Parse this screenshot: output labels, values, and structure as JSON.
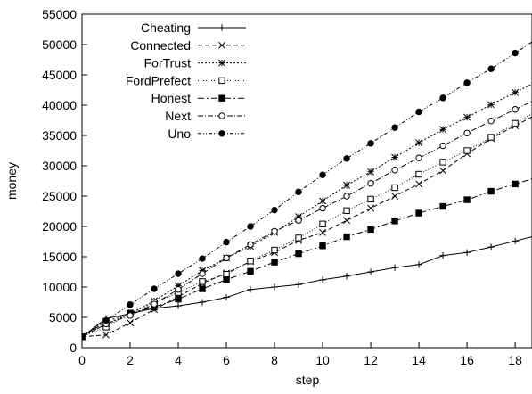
{
  "chart_data": {
    "type": "line",
    "title": "",
    "xlabel": "step",
    "ylabel": "money",
    "xlim": [
      0,
      18.7
    ],
    "ylim": [
      0,
      55000
    ],
    "x_ticks": [
      0,
      2,
      4,
      6,
      8,
      10,
      12,
      14,
      16,
      18
    ],
    "y_ticks": [
      0,
      5000,
      10000,
      15000,
      20000,
      25000,
      30000,
      35000,
      40000,
      45000,
      50000,
      55000
    ],
    "grid": false,
    "legend_position": "top-left",
    "x": [
      0,
      1,
      2,
      3,
      4,
      5,
      6,
      7,
      8,
      9,
      10,
      11,
      12,
      13,
      14,
      15,
      16,
      17,
      18
    ],
    "series": [
      {
        "name": "Cheating",
        "marker": "plus",
        "dash": "",
        "values": [
          1800,
          4800,
          5600,
          6500,
          6900,
          7500,
          8300,
          9600,
          10000,
          10400,
          11200,
          11800,
          12500,
          13200,
          13700,
          15200,
          15700,
          16600,
          17600
        ]
      },
      {
        "name": "Connected",
        "marker": "cross",
        "dash": "5,3",
        "values": [
          1800,
          2100,
          4100,
          6300,
          8400,
          10600,
          12300,
          14200,
          15700,
          17700,
          19000,
          21000,
          23000,
          25000,
          27000,
          29200,
          32000,
          34500,
          36600
        ]
      },
      {
        "name": "ForTrust",
        "marker": "star",
        "dash": "2,2",
        "values": [
          1800,
          3900,
          5600,
          7700,
          10200,
          12700,
          14800,
          16700,
          19000,
          21600,
          24200,
          26800,
          29000,
          31400,
          33800,
          36000,
          38000,
          40100,
          42100
        ]
      },
      {
        "name": "FordPrefect",
        "marker": "square-open",
        "dash": "1,2",
        "values": [
          1800,
          3400,
          5700,
          7400,
          9100,
          10900,
          12100,
          14300,
          16100,
          18100,
          20400,
          22600,
          24500,
          26400,
          28600,
          30600,
          32500,
          34700,
          37000
        ]
      },
      {
        "name": "Honest",
        "marker": "square-filled",
        "dash": "7,3,2,3",
        "values": [
          1800,
          4300,
          5700,
          6700,
          8000,
          9700,
          11200,
          12600,
          14100,
          15500,
          16800,
          18300,
          19500,
          20900,
          22200,
          23300,
          24400,
          25800,
          27000
        ]
      },
      {
        "name": "Next",
        "marker": "circle-open",
        "dash": "6,2,1,2",
        "values": [
          1800,
          3900,
          5300,
          7200,
          9600,
          12200,
          14800,
          17000,
          19200,
          21000,
          23000,
          25000,
          27100,
          29300,
          31300,
          33300,
          35400,
          37400,
          39300
        ]
      },
      {
        "name": "Uno",
        "marker": "circle-filled",
        "dash": "4,2,1,2,1,2",
        "values": [
          1800,
          4500,
          7100,
          9700,
          12200,
          14700,
          17400,
          20000,
          22700,
          25700,
          28500,
          31200,
          33700,
          36300,
          38900,
          41200,
          43700,
          46000,
          48600
        ]
      }
    ]
  }
}
